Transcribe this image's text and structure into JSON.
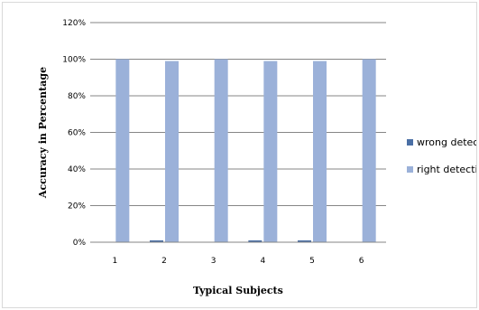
{
  "chart_data": {
    "type": "bar",
    "categories": [
      "1",
      "2",
      "3",
      "4",
      "5",
      "6"
    ],
    "series": [
      {
        "name": "wrong detection",
        "values": [
          0,
          1,
          0,
          1,
          1,
          0
        ]
      },
      {
        "name": "right detection",
        "values": [
          100,
          99,
          100,
          99,
          99,
          100
        ]
      }
    ],
    "title": "",
    "xlabel": "Typical Subjects",
    "ylabel": "Accuracy in Percentage",
    "ylim": [
      0,
      120
    ],
    "yticks": [
      "0%",
      "20%",
      "40%",
      "60%",
      "80%",
      "100%",
      "120%"
    ],
    "grid": true,
    "legend_position": "right",
    "colors": {
      "wrong detection": "#4a6fa5",
      "right detection": "#9bb1d9"
    }
  }
}
